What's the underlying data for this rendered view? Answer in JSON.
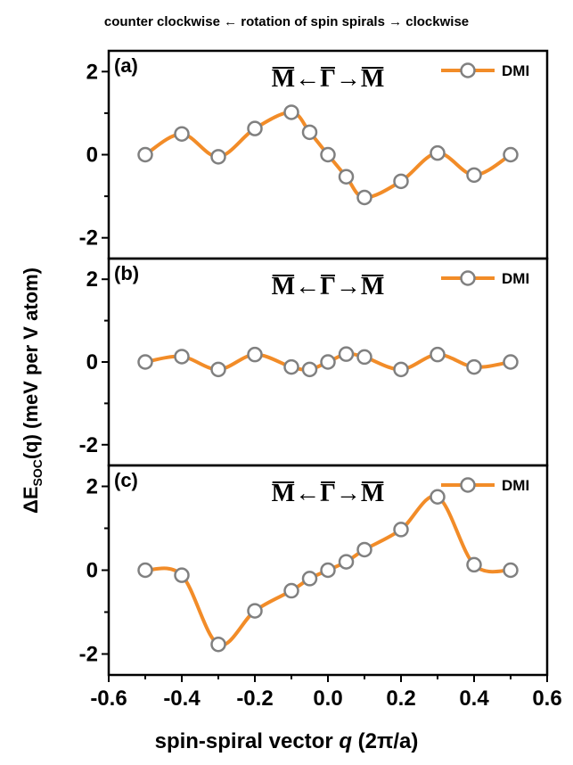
{
  "caption": "counter clockwise ← rotation of spin spirals → clockwise",
  "colors": {
    "line": "#f28c28",
    "marker_edge": "#808080",
    "marker_fill": "#ffffff",
    "axis": "#000000"
  },
  "chart_data": [
    {
      "type": "line",
      "panel_label": "(a)",
      "direction_label": {
        "left": "M",
        "arrow_left": "←",
        "center": "Γ",
        "arrow_right": "→",
        "right": "M"
      },
      "legend": "DMI",
      "xlim": [
        -0.6,
        0.6
      ],
      "ylim": [
        -2.5,
        2.5
      ],
      "yticks": [
        -2,
        0,
        2
      ],
      "series": [
        {
          "name": "DMI",
          "x": [
            -0.5,
            -0.4,
            -0.3,
            -0.2,
            -0.1,
            -0.05,
            0,
            0.05,
            0.1,
            0.2,
            0.3,
            0.4,
            0.5
          ],
          "y": [
            0.0,
            0.5,
            -0.05,
            0.63,
            1.02,
            0.54,
            0.0,
            -0.53,
            -1.03,
            -0.64,
            0.04,
            -0.49,
            0.0
          ]
        }
      ]
    },
    {
      "type": "line",
      "panel_label": "(b)",
      "direction_label": {
        "left": "M",
        "arrow_left": "←",
        "center": "Γ",
        "arrow_right": "→",
        "right": "M"
      },
      "legend": "DMI",
      "xlim": [
        -0.6,
        0.6
      ],
      "ylim": [
        -2.5,
        2.5
      ],
      "yticks": [
        -2,
        0,
        2
      ],
      "series": [
        {
          "name": "DMI",
          "x": [
            -0.5,
            -0.4,
            -0.3,
            -0.2,
            -0.1,
            -0.05,
            0,
            0.05,
            0.1,
            0.2,
            0.3,
            0.4,
            0.5
          ],
          "y": [
            0.0,
            0.13,
            -0.18,
            0.18,
            -0.12,
            -0.18,
            0.0,
            0.19,
            0.12,
            -0.18,
            0.18,
            -0.12,
            0.0
          ]
        }
      ]
    },
    {
      "type": "line",
      "panel_label": "(c)",
      "direction_label": {
        "left": "M",
        "arrow_left": "←",
        "center": "Γ",
        "arrow_right": "→",
        "right": "M"
      },
      "legend": "DMI",
      "xlim": [
        -0.6,
        0.6
      ],
      "ylim": [
        -2.5,
        2.5
      ],
      "yticks": [
        -2,
        0,
        2
      ],
      "xticks": [
        -0.6,
        -0.4,
        -0.2,
        0.0,
        0.2,
        0.4,
        0.6
      ],
      "xtick_labels": [
        "-0.6",
        "-0.4",
        "-0.2",
        "0.0",
        "0.2",
        "0.4",
        "0.6"
      ],
      "series": [
        {
          "name": "DMI",
          "x": [
            -0.5,
            -0.4,
            -0.3,
            -0.2,
            -0.1,
            -0.05,
            0,
            0.05,
            0.1,
            0.2,
            0.3,
            0.4,
            0.5
          ],
          "y": [
            0.0,
            -0.12,
            -1.77,
            -0.97,
            -0.49,
            -0.2,
            0.0,
            0.2,
            0.49,
            0.97,
            1.75,
            0.13,
            0.0
          ]
        }
      ]
    }
  ]
}
